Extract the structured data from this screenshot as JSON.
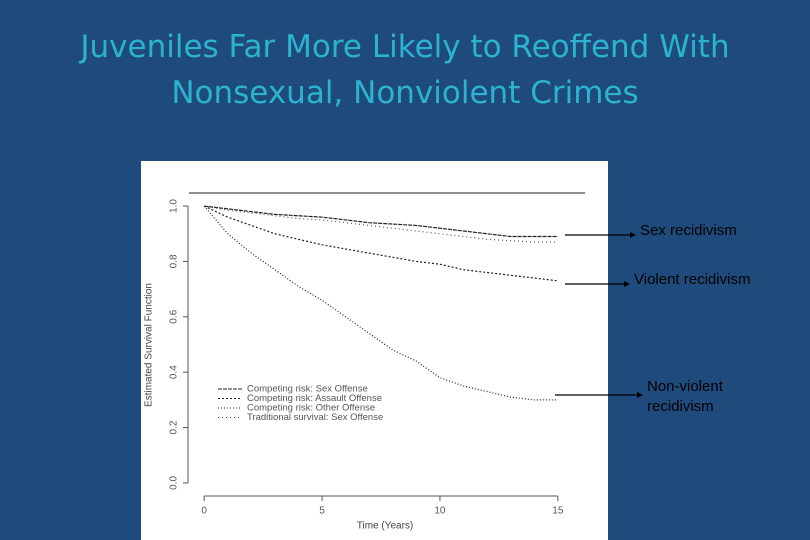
{
  "chart_data": {
    "type": "line",
    "title": "Juveniles Far More Likely to Reoffend With Nonsexual, Nonviolent Crimes",
    "xlabel": "Time (Years)",
    "ylabel": "Estimated Survival Function",
    "x": [
      0,
      1,
      2,
      3,
      4,
      5,
      6,
      7,
      8,
      9,
      10,
      11,
      12,
      13,
      14,
      15
    ],
    "xlim": [
      -0.6,
      15.6
    ],
    "xticks": [
      0,
      5,
      10,
      15
    ],
    "ylim": [
      -0.04,
      1.04
    ],
    "yticks": [
      {
        "value": 0,
        "label": "0.0"
      },
      {
        "value": 0.2,
        "label": "0.2"
      },
      {
        "value": 0.4,
        "label": "0.4"
      },
      {
        "value": 0.6,
        "label": "0.6"
      },
      {
        "value": 0.8,
        "label": "0.8"
      },
      {
        "value": 1,
        "label": "1.0"
      }
    ],
    "series": [
      {
        "name": "Competing risk: Sex Offense",
        "color": "#222222",
        "values": [
          1.0,
          0.99,
          0.98,
          0.97,
          0.965,
          0.96,
          0.95,
          0.94,
          0.935,
          0.93,
          0.92,
          0.91,
          0.9,
          0.89,
          0.89,
          0.89
        ]
      },
      {
        "name": "Competing risk: Assault Offense",
        "color": "#222222",
        "values": [
          1.0,
          0.96,
          0.93,
          0.9,
          0.88,
          0.86,
          0.845,
          0.83,
          0.815,
          0.8,
          0.79,
          0.77,
          0.76,
          0.75,
          0.74,
          0.73
        ]
      },
      {
        "name": "Competing risk: Other Offense",
        "color": "#222222",
        "values": [
          1.0,
          0.9,
          0.83,
          0.77,
          0.71,
          0.66,
          0.6,
          0.54,
          0.48,
          0.44,
          0.38,
          0.35,
          0.33,
          0.31,
          0.3,
          0.3
        ]
      },
      {
        "name": "Traditional survival: Sex Offense",
        "color": "#555555",
        "values": [
          1.0,
          0.985,
          0.975,
          0.965,
          0.955,
          0.95,
          0.94,
          0.93,
          0.92,
          0.91,
          0.9,
          0.89,
          0.88,
          0.875,
          0.87,
          0.87
        ]
      }
    ],
    "annotations": [
      {
        "lines": [
          "Sex recidivism"
        ]
      },
      {
        "lines": [
          "Violent recidivism"
        ]
      },
      {
        "lines": [
          "Non-violent",
          "recidivism"
        ]
      }
    ]
  }
}
